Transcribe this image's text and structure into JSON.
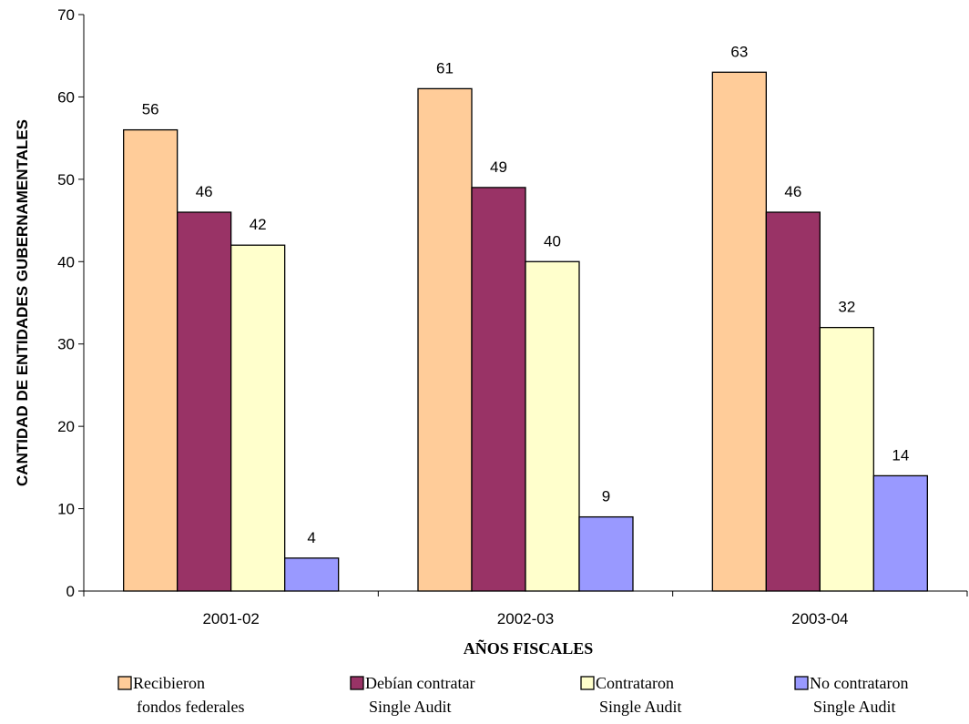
{
  "chart_data": {
    "type": "bar",
    "title": "",
    "xlabel": "AÑOS FISCALES",
    "ylabel": "CANTIDAD DE ENTIDADES GUBERNAMENTALES",
    "ylim": [
      0,
      70
    ],
    "yticks": [
      0,
      10,
      20,
      30,
      40,
      50,
      60,
      70
    ],
    "categories": [
      "2001-02",
      "2002-03",
      "2003-04"
    ],
    "grid": false,
    "legend_position": "bottom",
    "series": [
      {
        "name": "Recibieron fondos federales",
        "legend_lines": [
          "Recibieron",
          "fondos federales"
        ],
        "values": [
          56,
          61,
          63
        ],
        "color": "#FFCC99"
      },
      {
        "name": "Debían contratar Single Audit",
        "legend_lines": [
          "Debían contratar",
          "Single Audit"
        ],
        "values": [
          46,
          49,
          46
        ],
        "color": "#993366"
      },
      {
        "name": "Contrataron Single Audit",
        "legend_lines": [
          "Contrataron",
          "Single Audit"
        ],
        "values": [
          42,
          40,
          32
        ],
        "color": "#FFFFCC"
      },
      {
        "name": "No contrataron Single Audit",
        "legend_lines": [
          "No contrataron",
          "Single Audit"
        ],
        "values": [
          4,
          9,
          14
        ],
        "color": "#9999FF"
      }
    ]
  }
}
